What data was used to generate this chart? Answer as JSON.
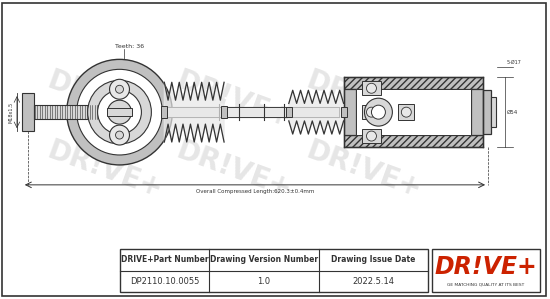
{
  "bg_color": "#ffffff",
  "border_color": "#333333",
  "hatch_color": "#aaaaaa",
  "line_color": "#444444",
  "watermark_color": "#cccccc",
  "col_headers": [
    "DRIVE+Part Number",
    "Drawing Version Number",
    "Drawing Issue Date"
  ],
  "col_values": [
    "DP2110.10.0055",
    "1.0",
    "2022.5.14"
  ],
  "logo_text": "DR!VE+",
  "logo_sub": "GE MATCHING QUALITY AT ITS BEST",
  "logo_color": "#cc2200",
  "teeth_label": "Teeth: 36",
  "dim_label": "Overall Compressed Length:620.3±0.4mm",
  "dim2": "5-Ø17",
  "dim3": "Ø54",
  "watermark": "DR!VE+",
  "lc": "#333333",
  "gray1": "#c0c0c0",
  "gray2": "#d8d8d8",
  "gray3": "#e8e8e8",
  "white": "#ffffff"
}
